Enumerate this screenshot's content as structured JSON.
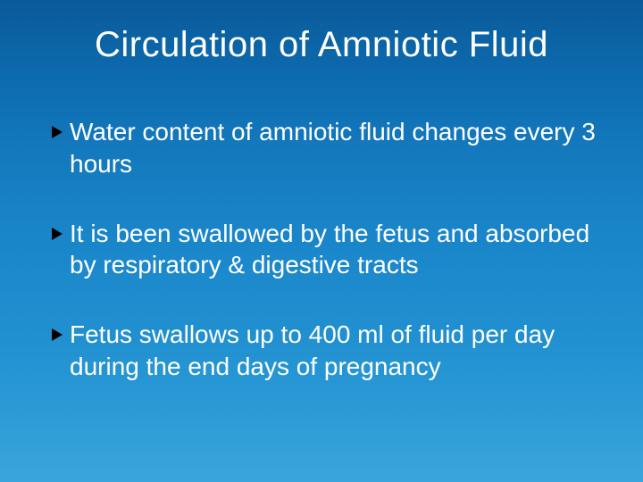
{
  "slide": {
    "background_gradient": [
      "#0a5a9a",
      "#3aa5dc"
    ],
    "text_color": "#ffffff",
    "bullet_marker_color": "#000000",
    "title": "Circulation of Amniotic Fluid",
    "title_fontsize": 40,
    "body_fontsize": 28,
    "bullets": [
      "Water content of amniotic fluid changes every 3 hours",
      "It is been swallowed by the fetus and absorbed by respiratory & digestive tracts",
      "Fetus swallows up to 400 ml of fluid per day during the end days of pregnancy"
    ]
  }
}
